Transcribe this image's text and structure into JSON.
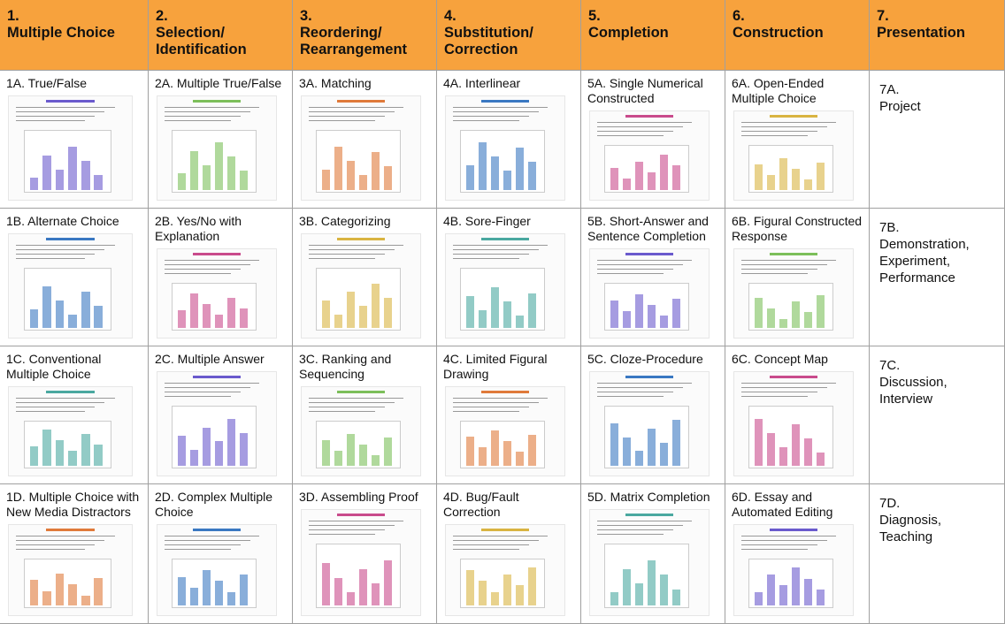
{
  "columns": [
    {
      "number": "1.",
      "title": "Multiple Choice"
    },
    {
      "number": "2.",
      "title": "Selection/ Identification"
    },
    {
      "number": "3.",
      "title": "Reordering/ Rearrangement"
    },
    {
      "number": "4.",
      "title": "Substitution/ Correction"
    },
    {
      "number": "5.",
      "title": "Completion"
    },
    {
      "number": "6.",
      "title": "Construction"
    },
    {
      "number": "7.",
      "title": "Presentation"
    }
  ],
  "rows": [
    [
      "1A. True/False",
      "2A. Multiple True/False",
      "3A. Matching",
      "4A. Interlinear",
      "5A. Single Numerical Constructed",
      "6A. Open-Ended Multiple Choice",
      "7A.\nProject"
    ],
    [
      "1B. Alternate Choice",
      "2B. Yes/No with Explanation",
      "3B. Categorizing",
      "4B. Sore-Finger",
      "5B. Short-Answer and Sentence Completion",
      "6B. Figural Constructed Response",
      "7B.\nDemonstration, Experiment, Performance"
    ],
    [
      "1C. Conventional Multiple Choice",
      "2C. Multiple Answer",
      "3C. Ranking and Sequencing",
      "4C. Limited Figural Drawing",
      "5C. Cloze-Procedure",
      "6C. Concept Map",
      "7C.\nDiscussion, Interview"
    ],
    [
      "1D. Multiple Choice with New Media Distractors",
      "2D. Complex Multiple Choice",
      "3D. Assembling Proof",
      "4D. Bug/Fault Correction",
      "5D. Matrix Completion",
      "6D. Essay and Automated Editing",
      "7D.\nDiagnosis, Teaching"
    ]
  ]
}
